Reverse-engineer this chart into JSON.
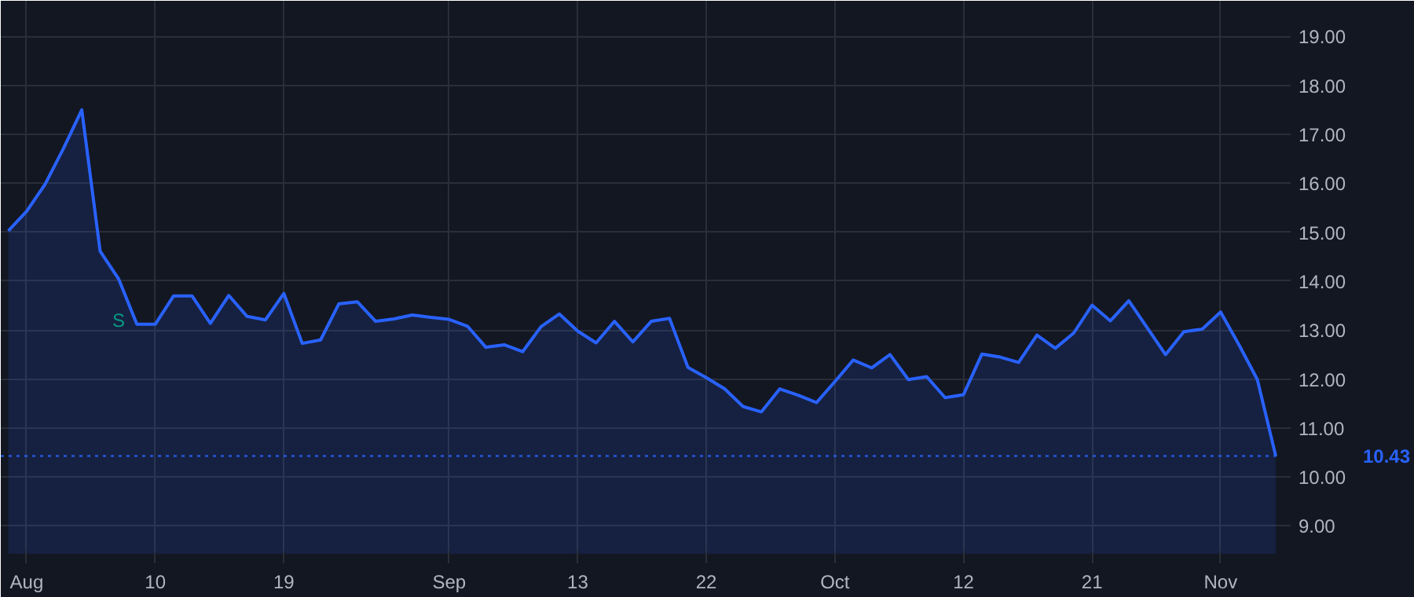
{
  "chart_data": {
    "type": "area",
    "categories": [
      null,
      "Aug",
      null,
      null,
      null,
      null,
      null,
      null,
      "10",
      null,
      null,
      null,
      null,
      null,
      null,
      "19",
      null,
      null,
      null,
      null,
      null,
      null,
      null,
      null,
      "Sep",
      null,
      null,
      null,
      null,
      null,
      null,
      "13",
      null,
      null,
      null,
      null,
      null,
      null,
      "22",
      null,
      null,
      null,
      null,
      null,
      null,
      "Oct",
      null,
      null,
      null,
      null,
      null,
      null,
      "12",
      null,
      null,
      null,
      null,
      null,
      null,
      "21",
      null,
      null,
      null,
      null,
      null,
      null,
      "Nov",
      null,
      null,
      null
    ],
    "series": [
      {
        "color": "#2962ff",
        "values": [
          15.03,
          15.43,
          15.98,
          16.71,
          17.5,
          14.61,
          14.05,
          13.12,
          13.12,
          13.7,
          13.7,
          13.14,
          13.71,
          13.28,
          13.21,
          13.75,
          12.73,
          12.8,
          13.54,
          13.58,
          13.18,
          13.23,
          13.31,
          13.26,
          13.22,
          13.08,
          12.65,
          12.7,
          12.56,
          13.07,
          13.33,
          12.98,
          12.74,
          13.18,
          12.76,
          13.18,
          13.24,
          12.24,
          12.03,
          11.8,
          11.44,
          11.33,
          11.8,
          11.67,
          11.52,
          11.95,
          12.39,
          12.23,
          12.5,
          11.99,
          12.05,
          11.62,
          11.68,
          12.51,
          12.45,
          12.34,
          12.9,
          12.63,
          12.94,
          13.51,
          13.19,
          13.6,
          13.05,
          12.5,
          12.97,
          13.02,
          13.37,
          12.7,
          11.99,
          10.43
        ]
      }
    ],
    "ylim": [
      8.43,
      19.73
    ],
    "yticks": [
      {
        "value": 9,
        "label": "9.00"
      },
      {
        "value": 10,
        "label": "10.00"
      },
      {
        "value": 11,
        "label": "11.00"
      },
      {
        "value": 12,
        "label": "12.00"
      },
      {
        "value": 13,
        "label": "13.00"
      },
      {
        "value": 14,
        "label": "14.00"
      },
      {
        "value": 15,
        "label": "15.00"
      },
      {
        "value": 16,
        "label": "16.00"
      },
      {
        "value": 17,
        "label": "17.00"
      },
      {
        "value": 18,
        "label": "18.00"
      },
      {
        "value": 19,
        "label": "19.00"
      }
    ],
    "ref_lines": [
      {
        "axis": "y",
        "value": 10.43,
        "label": "10.43",
        "color": "#2962ff",
        "line_style": "dotted"
      }
    ],
    "annotations": [
      "S"
    ],
    "grid": true
  }
}
